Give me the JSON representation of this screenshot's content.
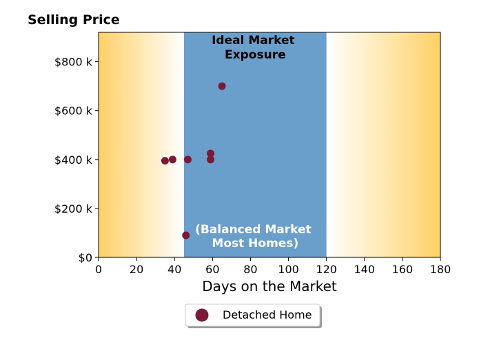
{
  "chart_data": {
    "type": "scatter",
    "title": "Selling Price",
    "xlabel": "Days on the Market",
    "ylabel": "Selling Price",
    "xlim": [
      0,
      180
    ],
    "ylim": [
      0,
      920000
    ],
    "x_ticks": [
      0,
      20,
      40,
      60,
      80,
      100,
      120,
      140,
      160,
      180
    ],
    "x_tick_labels": [
      "0",
      "20",
      "40",
      "60",
      "80",
      "100",
      "120",
      "140",
      "160",
      "180"
    ],
    "y_ticks": [
      0,
      200000,
      400000,
      600000,
      800000
    ],
    "y_tick_labels": [
      "$0",
      "$200 k",
      "$400 k",
      "$600 k",
      "$800 k"
    ],
    "grid": false,
    "legend_position": "bottom-center",
    "bands": [
      {
        "label": "Ideal Market Exposure",
        "x_start": 45,
        "x_end": 120,
        "color": "#6a9fcc"
      }
    ],
    "background_gradient": {
      "edge_color": "#ffd166",
      "center_color": "#ffffff"
    },
    "annotations": [
      {
        "id": "ideal",
        "lines": [
          "Ideal Market",
          "Exposure"
        ],
        "color": "#000000"
      },
      {
        "id": "balanced",
        "lines": [
          "(Balanced Market",
          "Most Homes)"
        ],
        "color": "#ffffff"
      }
    ],
    "series": [
      {
        "name": "Detached Home",
        "color": "#7a1a38",
        "points": [
          {
            "x": 35,
            "y": 395000
          },
          {
            "x": 39,
            "y": 400000
          },
          {
            "x": 46,
            "y": 90000
          },
          {
            "x": 47,
            "y": 400000
          },
          {
            "x": 59,
            "y": 425000
          },
          {
            "x": 59,
            "y": 400000
          },
          {
            "x": 65,
            "y": 700000
          }
        ]
      }
    ]
  }
}
